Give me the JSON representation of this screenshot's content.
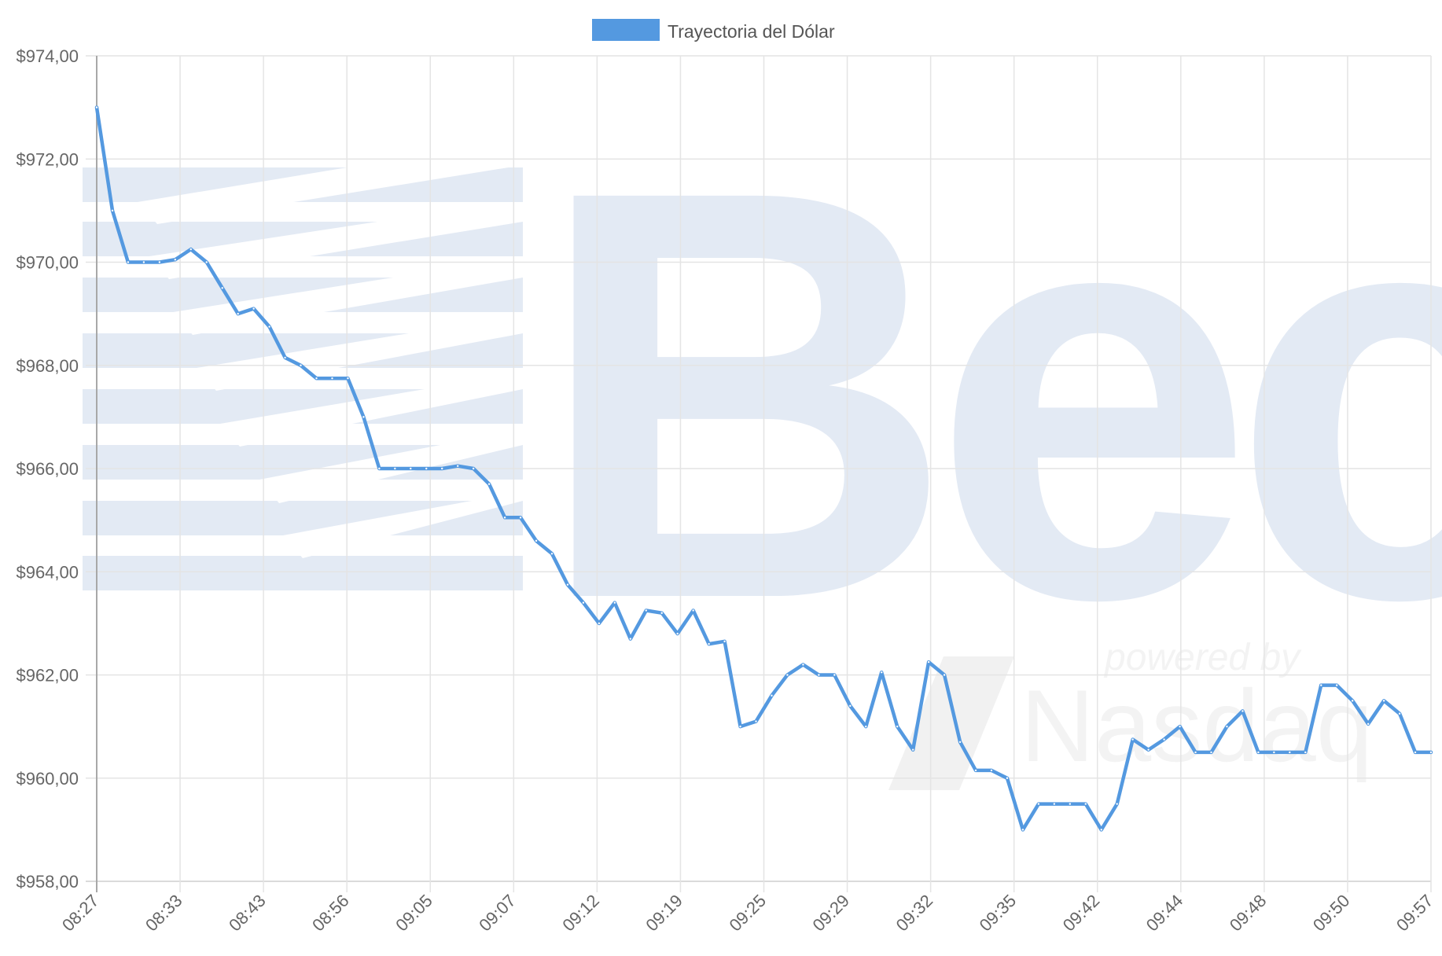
{
  "chart_data": {
    "type": "line",
    "legend": {
      "position": "top",
      "label": "Trayectoria del Dólar"
    },
    "series": [
      {
        "name": "Trayectoria del Dólar",
        "color": "#5499e0",
        "values": [
          973.0,
          971.0,
          970.0,
          970.0,
          970.0,
          970.05,
          970.25,
          970.0,
          969.5,
          969.0,
          969.1,
          968.75,
          968.15,
          968.0,
          967.75,
          967.75,
          967.75,
          967.0,
          966.0,
          966.0,
          966.0,
          966.0,
          966.0,
          966.05,
          966.0,
          965.7,
          965.05,
          965.05,
          964.6,
          964.35,
          963.75,
          963.4,
          963.0,
          963.4,
          962.7,
          963.25,
          963.2,
          962.8,
          963.25,
          962.6,
          962.65,
          961.0,
          961.1,
          961.6,
          962.0,
          962.2,
          962.0,
          962.0,
          961.4,
          961.0,
          962.05,
          961.0,
          960.55,
          962.25,
          962.0,
          960.7,
          960.15,
          960.15,
          960.0,
          959.0,
          959.5,
          959.5,
          959.5,
          959.5,
          959.0,
          959.5,
          960.75,
          960.55,
          960.75,
          961.0,
          960.5,
          960.5,
          961.0,
          961.3,
          960.5,
          960.5,
          960.5,
          960.5,
          961.8,
          961.8,
          961.5,
          961.05,
          961.5,
          961.25,
          960.5,
          960.5
        ]
      }
    ],
    "x_tick_labels": [
      "08:27",
      "08:33",
      "08:43",
      "08:56",
      "09:05",
      "09:07",
      "09:12",
      "09:19",
      "09:25",
      "09:29",
      "09:32",
      "09:35",
      "09:42",
      "09:44",
      "09:48",
      "09:50",
      "09:57"
    ],
    "y_ticks": [
      974,
      972,
      970,
      968,
      966,
      964,
      962,
      960,
      958
    ],
    "y_tick_labels": [
      "$974,00",
      "$972,00",
      "$970,00",
      "$968,00",
      "$966,00",
      "$964,00",
      "$962,00",
      "$960,00",
      "$958,00"
    ],
    "ylim": [
      958,
      974
    ],
    "grid": true,
    "watermark": {
      "main_text": "Bec",
      "sub_text": "powered by",
      "brand_text": "Nasdaq"
    }
  }
}
